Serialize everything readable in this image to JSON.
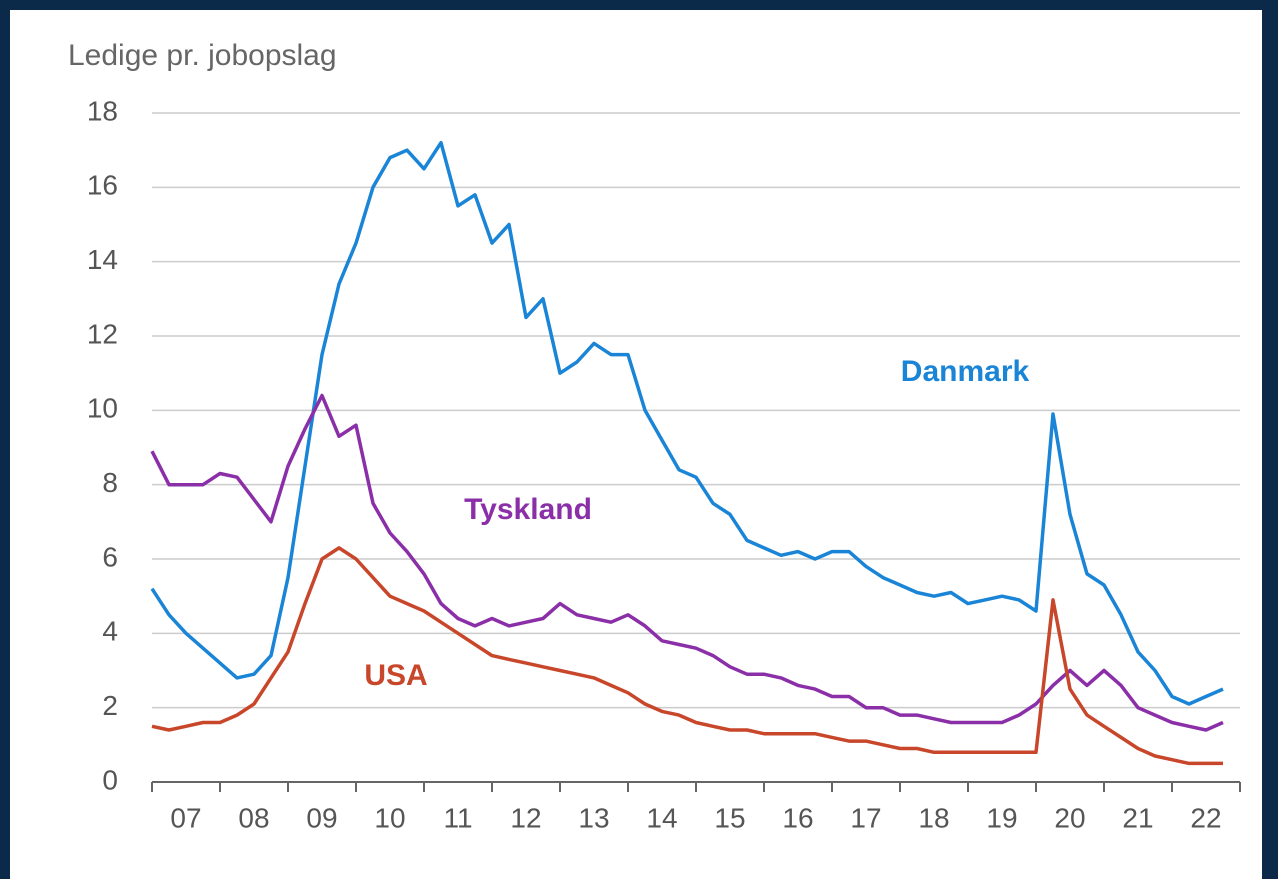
{
  "chart_data": {
    "type": "line",
    "y_axis_label": "Ledige pr. jobopslag",
    "x": [
      7,
      7.25,
      7.5,
      7.75,
      8,
      8.25,
      8.5,
      8.75,
      9,
      9.25,
      9.5,
      9.75,
      10,
      10.25,
      10.5,
      10.75,
      11,
      11.25,
      11.5,
      11.75,
      12,
      12.25,
      12.5,
      12.75,
      13,
      13.25,
      13.5,
      13.75,
      14,
      14.25,
      14.5,
      14.75,
      15,
      15.25,
      15.5,
      15.75,
      16,
      16.25,
      16.5,
      16.75,
      17,
      17.25,
      17.5,
      17.75,
      18,
      18.25,
      18.5,
      18.75,
      19,
      19.25,
      19.5,
      19.75,
      20,
      20.25,
      20.5,
      20.75,
      21,
      21.25,
      21.5,
      21.75,
      22,
      22.25,
      22.5,
      22.75
    ],
    "series": [
      {
        "name": "Danmark",
        "color": "#1a85d6",
        "values": [
          5.2,
          4.5,
          4.0,
          3.6,
          3.2,
          2.8,
          2.9,
          3.4,
          5.5,
          8.5,
          11.5,
          13.4,
          14.5,
          16.0,
          16.8,
          17.0,
          16.5,
          17.2,
          15.5,
          15.8,
          14.5,
          15.0,
          12.5,
          13.0,
          11.0,
          11.3,
          11.8,
          11.5,
          11.5,
          10.0,
          9.2,
          8.4,
          8.2,
          7.5,
          7.2,
          6.5,
          6.3,
          6.1,
          6.2,
          6.0,
          6.2,
          6.2,
          5.8,
          5.5,
          5.3,
          5.1,
          5.0,
          5.1,
          4.8,
          4.9,
          5.0,
          4.9,
          4.6,
          9.9,
          7.2,
          5.6,
          5.3,
          4.5,
          3.5,
          3.0,
          2.3,
          2.1,
          2.3,
          2.5
        ]
      },
      {
        "name": "Tyskland",
        "color": "#8b2fa8",
        "values": [
          8.9,
          8.0,
          8.0,
          8.0,
          8.3,
          8.2,
          7.6,
          7.0,
          8.5,
          9.5,
          10.4,
          9.3,
          9.6,
          7.5,
          6.7,
          6.2,
          5.6,
          4.8,
          4.4,
          4.2,
          4.4,
          4.2,
          4.3,
          4.4,
          4.8,
          4.5,
          4.4,
          4.3,
          4.5,
          4.2,
          3.8,
          3.7,
          3.6,
          3.4,
          3.1,
          2.9,
          2.9,
          2.8,
          2.6,
          2.5,
          2.3,
          2.3,
          2.0,
          2.0,
          1.8,
          1.8,
          1.7,
          1.6,
          1.6,
          1.6,
          1.6,
          1.8,
          2.1,
          2.6,
          3.0,
          2.6,
          3.0,
          2.6,
          2.0,
          1.8,
          1.6,
          1.5,
          1.4,
          1.6
        ]
      },
      {
        "name": "USA",
        "color": "#c8462a",
        "values": [
          1.5,
          1.4,
          1.5,
          1.6,
          1.6,
          1.8,
          2.1,
          2.8,
          3.5,
          4.8,
          6.0,
          6.3,
          6.0,
          5.5,
          5.0,
          4.8,
          4.6,
          4.3,
          4.0,
          3.7,
          3.4,
          3.3,
          3.2,
          3.1,
          3.0,
          2.9,
          2.8,
          2.6,
          2.4,
          2.1,
          1.9,
          1.8,
          1.6,
          1.5,
          1.4,
          1.4,
          1.3,
          1.3,
          1.3,
          1.3,
          1.2,
          1.1,
          1.1,
          1.0,
          0.9,
          0.9,
          0.8,
          0.8,
          0.8,
          0.8,
          0.8,
          0.8,
          0.8,
          4.9,
          2.5,
          1.8,
          1.5,
          1.2,
          0.9,
          0.7,
          0.6,
          0.5,
          0.5,
          0.5
        ]
      }
    ],
    "xlim": [
      7,
      23
    ],
    "xticks": [
      {
        "value": 7.5,
        "label": "07"
      },
      {
        "value": 8.5,
        "label": "08"
      },
      {
        "value": 9.5,
        "label": "09"
      },
      {
        "value": 10.5,
        "label": "10"
      },
      {
        "value": 11.5,
        "label": "11"
      },
      {
        "value": 12.5,
        "label": "12"
      },
      {
        "value": 13.5,
        "label": "13"
      },
      {
        "value": 14.5,
        "label": "14"
      },
      {
        "value": 15.5,
        "label": "15"
      },
      {
        "value": 16.5,
        "label": "16"
      },
      {
        "value": 17.5,
        "label": "17"
      },
      {
        "value": 18.5,
        "label": "18"
      },
      {
        "value": 19.5,
        "label": "19"
      },
      {
        "value": 20.5,
        "label": "20"
      },
      {
        "value": 21.5,
        "label": "21"
      },
      {
        "value": 22.5,
        "label": "22"
      }
    ],
    "ylim": [
      0,
      18
    ],
    "yticks": [
      0,
      2,
      4,
      6,
      8,
      10,
      12,
      14,
      16,
      18
    ],
    "grid": true
  }
}
